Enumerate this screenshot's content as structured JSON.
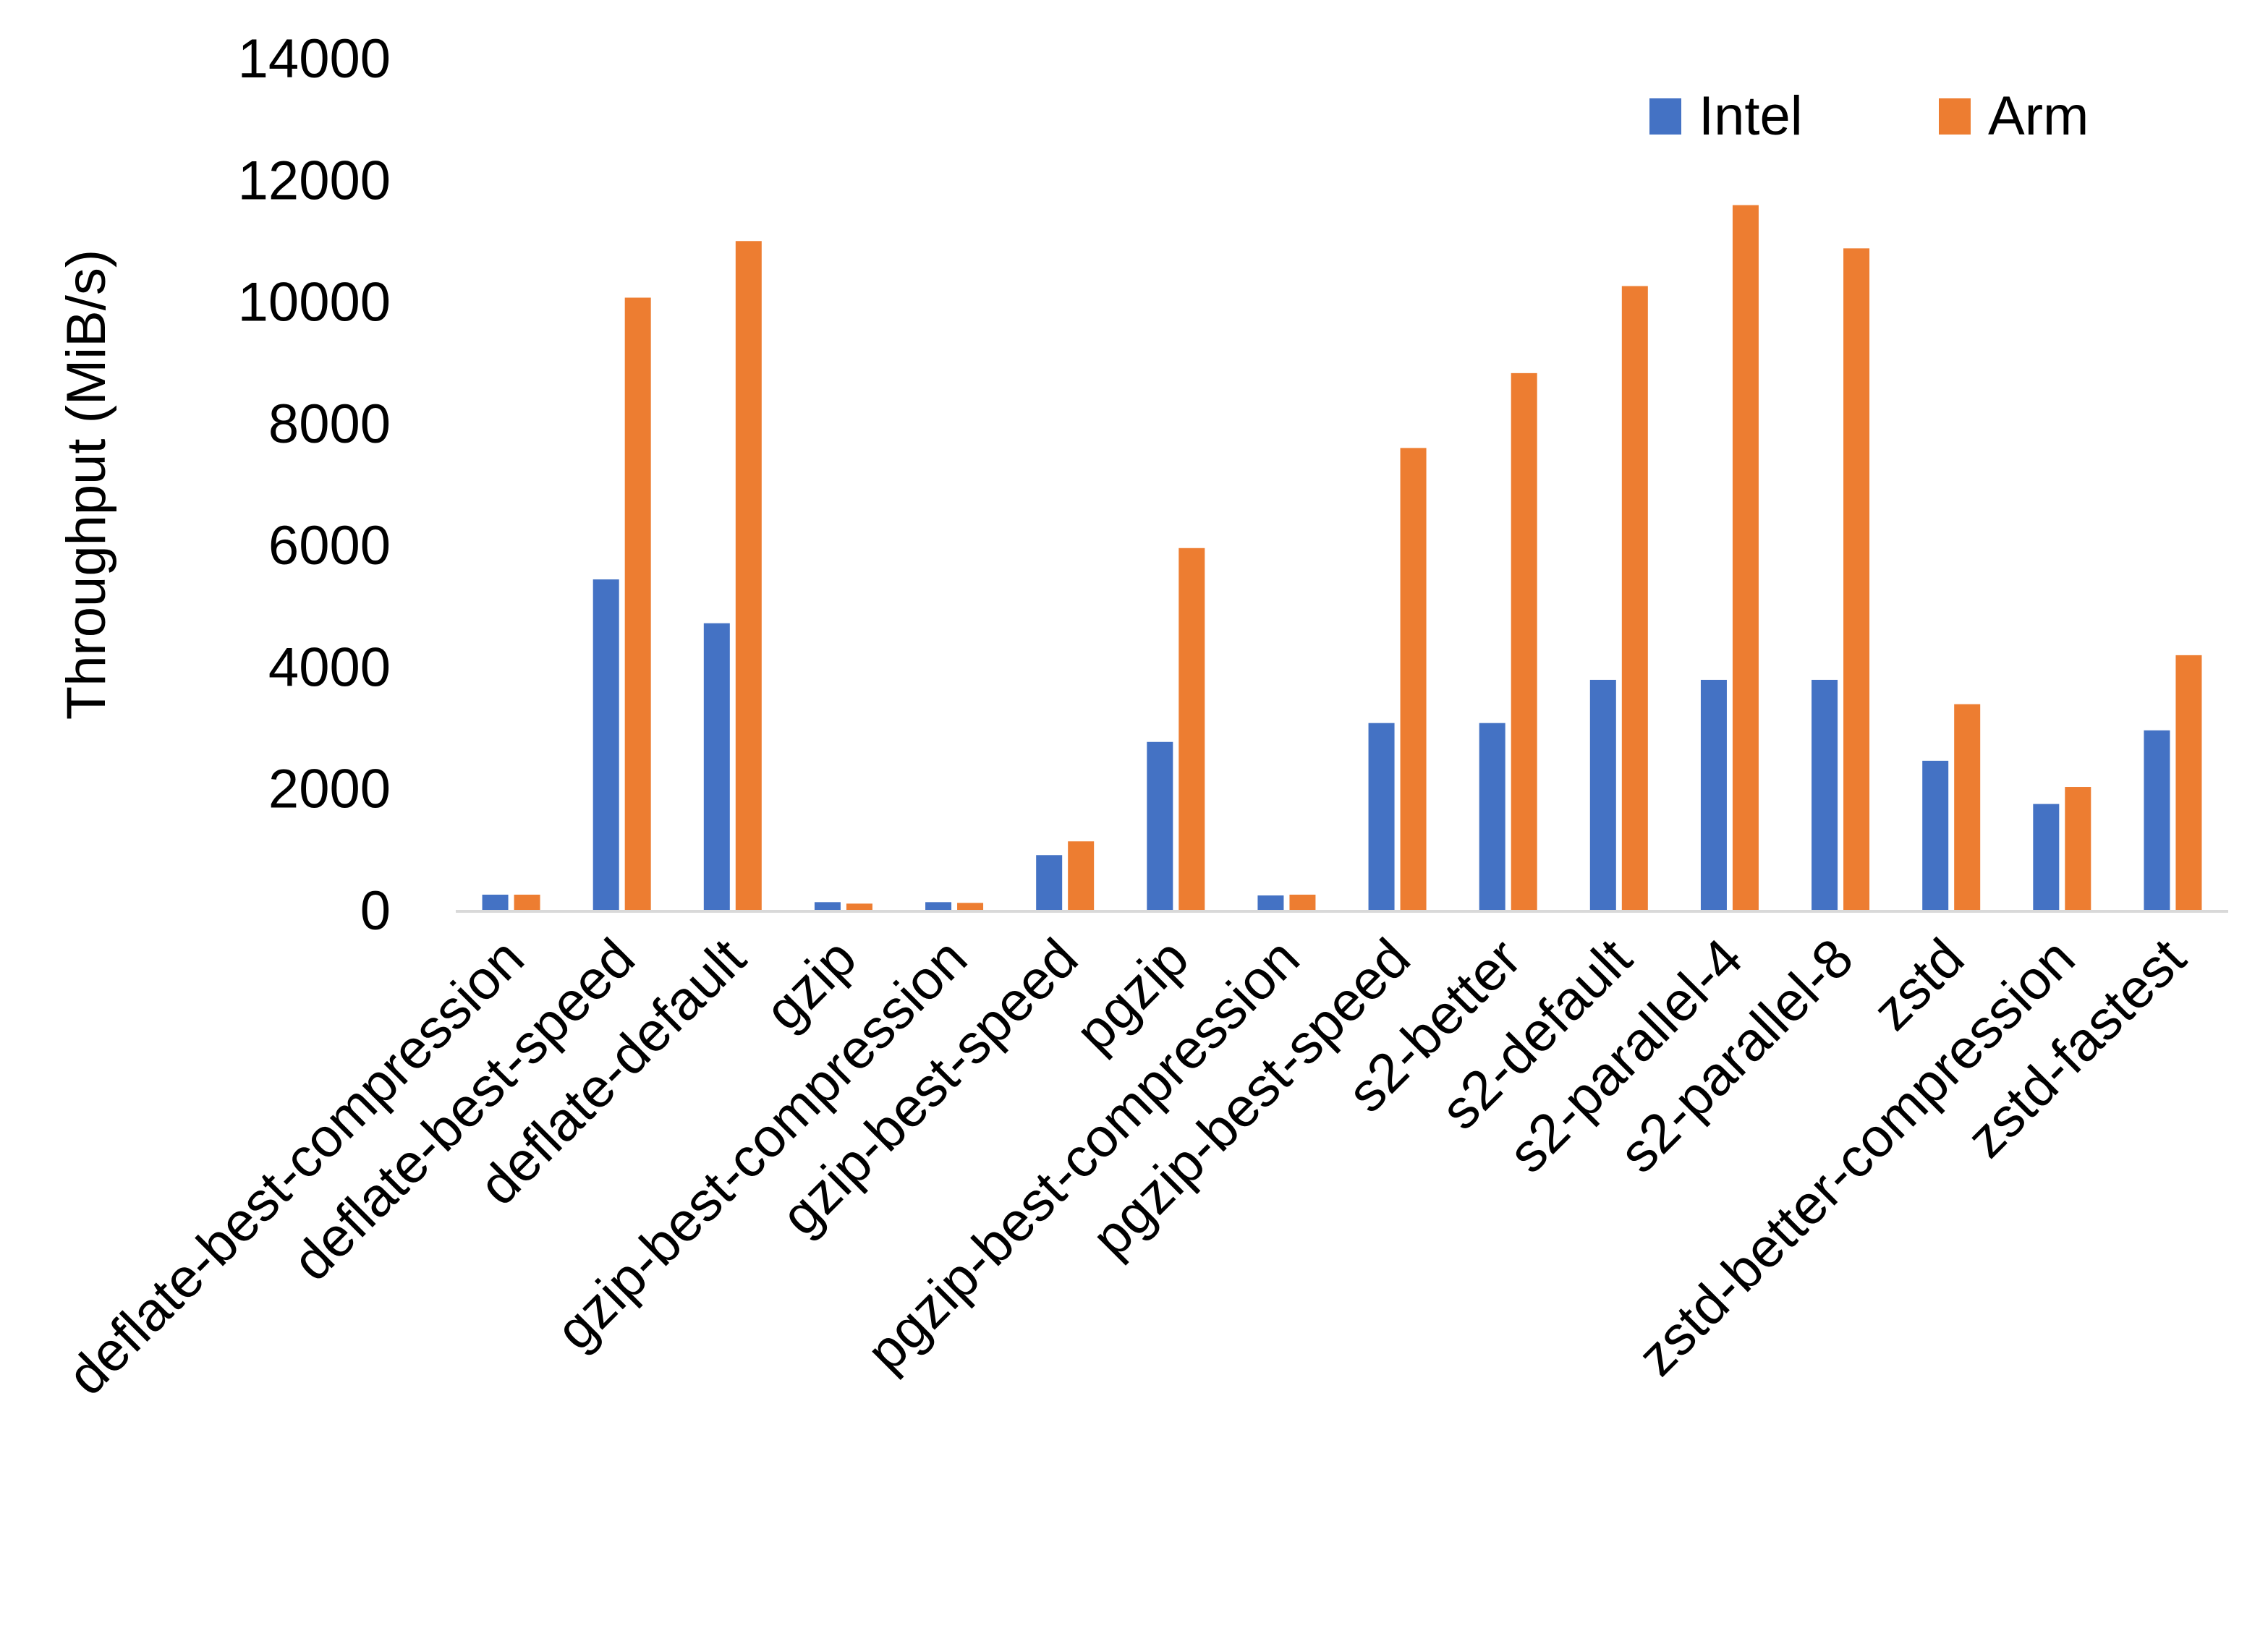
{
  "chart_data": {
    "type": "bar",
    "title": "",
    "xlabel": "",
    "ylabel": "Throughput (MiB/s)",
    "ylim": [
      0,
      14000
    ],
    "yticks": [
      "0",
      "2000",
      "4000",
      "6000",
      "8000",
      "10000",
      "12000",
      "14000"
    ],
    "grid": false,
    "legend_position": "top-right",
    "categories": [
      "deflate-best-compression",
      "deflate-best-speed",
      "deflate-default",
      "gzip",
      "gzip-best-compression",
      "gzip-best-speed",
      "pgzip",
      "pgzip-best-compression",
      "pgzip-best-speed",
      "s2-better",
      "s2-default",
      "s2-parallel-4",
      "s2-parallel-8",
      "zstd",
      "zstd-better-compression",
      "zstd-fastest"
    ],
    "series": [
      {
        "name": "Intel",
        "color": "#4472C4",
        "values": [
          250,
          5430,
          4710,
          127,
          127,
          900,
          2760,
          237,
          3070,
          3070,
          3780,
          3780,
          3780,
          2450,
          1740,
          2950
        ]
      },
      {
        "name": "Arm",
        "color": "#ED7D31",
        "values": [
          250,
          10060,
          10990,
          103,
          115,
          1126,
          5945,
          250,
          7590,
          8820,
          10250,
          11580,
          10870,
          3380,
          2020,
          4185
        ]
      }
    ]
  }
}
